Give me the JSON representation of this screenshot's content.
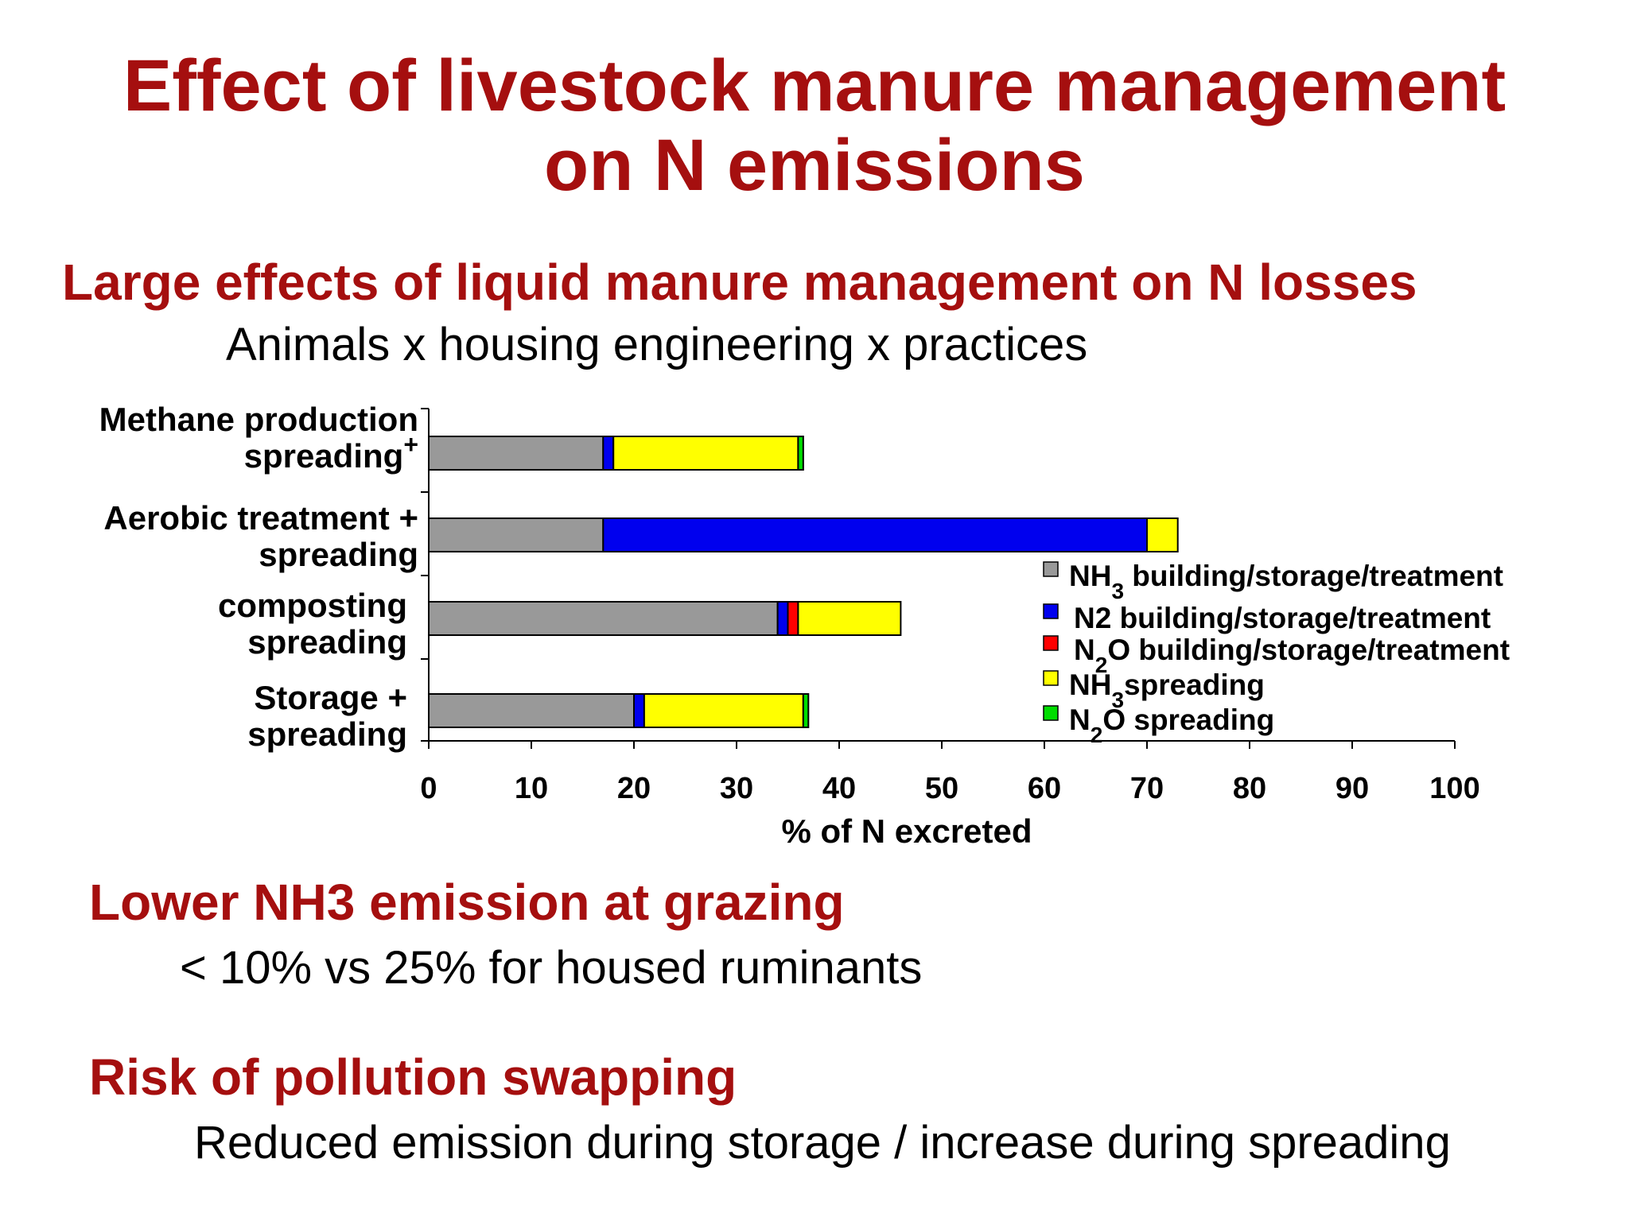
{
  "title": {
    "line1": "Effect of livestock manure management",
    "line2": "on N emissions"
  },
  "section1": {
    "heading": "Large effects of liquid manure management on N losses",
    "subtext": "Animals x housing engineering x practices"
  },
  "section2": {
    "heading": "Lower NH3 emission at grazing",
    "subtext": "< 10% vs 25% for housed ruminants"
  },
  "section3": {
    "heading": "Risk of pollution swapping",
    "subtext": "Reduced emission during storage / increase during spreading"
  },
  "chart_data": {
    "type": "bar",
    "orientation": "horizontal",
    "stacked": true,
    "xlabel": "% of N excreted",
    "xlim": [
      0,
      100
    ],
    "xticks": [
      0,
      10,
      20,
      30,
      40,
      50,
      60,
      70,
      80,
      90,
      100
    ],
    "grid": false,
    "legend_position": "right-center",
    "categories": [
      [
        "Methane production",
        "spreading+"
      ],
      [
        "Aerobic treatment +",
        "spreading"
      ],
      [
        "composting",
        "spreading"
      ],
      [
        "Storage +",
        "spreading"
      ]
    ],
    "series": [
      {
        "name": "NH3 building/storage/treatment",
        "legend_main": "NH",
        "legend_sub": "3",
        "legend_rest": " building/storage/treatment",
        "color": "#999999",
        "values": [
          17,
          17,
          34,
          20
        ]
      },
      {
        "name": "N2 building/storage/treatment",
        "legend_main": "N2 building/storage/treatment",
        "legend_sub": "",
        "legend_rest": "",
        "color": "#0000ee",
        "values": [
          1,
          53,
          1,
          1
        ]
      },
      {
        "name": "N2O building/storage/treatment",
        "legend_main": "N",
        "legend_sub": "2",
        "legend_rest": "O building/storage/treatment",
        "color": "#ff0000",
        "values": [
          0,
          0,
          1,
          0
        ]
      },
      {
        "name": "NH3spreading",
        "legend_main": "NH",
        "legend_sub": "3",
        "legend_rest": "spreading",
        "color": "#ffff00",
        "values": [
          18,
          3,
          10,
          15.5
        ]
      },
      {
        "name": "N2O spreading",
        "legend_main": "N",
        "legend_sub": "2",
        "legend_rest": "O spreading",
        "color": "#00dd00",
        "values": [
          0.5,
          0,
          0,
          0.5
        ]
      }
    ]
  }
}
